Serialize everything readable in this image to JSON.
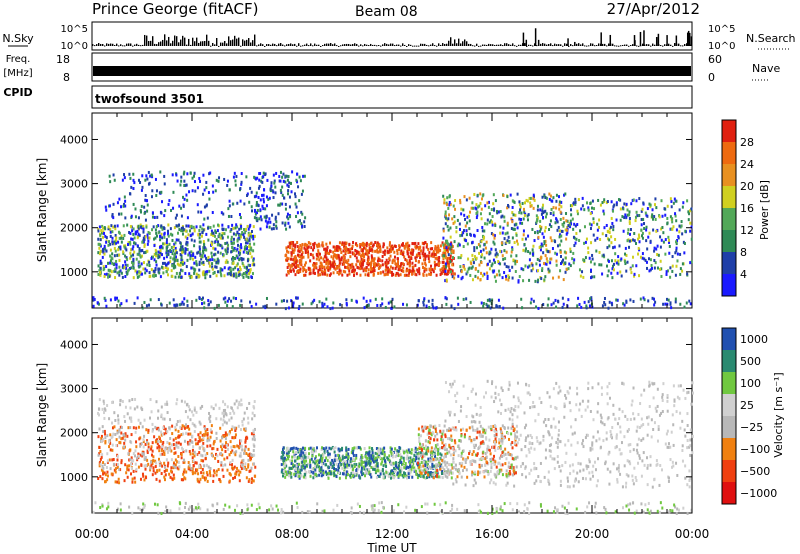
{
  "header": {
    "station": "Prince George (fitACF)",
    "beam": "Beam 08",
    "date": "27/Apr/2012"
  },
  "left_labels": {
    "nsky": "N.Sky",
    "freq": "Freq.",
    "freq_unit": "[MHz]",
    "cpid": "CPID"
  },
  "right_labels": {
    "nsearch": "N.Search",
    "nave": "Nave"
  },
  "noise_panel": {
    "left_ticks": [
      "10^5",
      "10^0"
    ],
    "right_ticks": [
      "10^5",
      "10^0"
    ]
  },
  "freq_panel": {
    "left_ticks": [
      "18",
      "8"
    ],
    "right_ticks": [
      "60",
      "0"
    ]
  },
  "cpid_panel": {
    "label": "twofsound 3501"
  },
  "time_axis": {
    "label": "Time UT",
    "ticks": [
      "00:00",
      "04:00",
      "08:00",
      "12:00",
      "16:00",
      "20:00",
      "00:00"
    ]
  },
  "colors": {
    "power_scale": [
      "#1a1aff",
      "#1f3fa8",
      "#2f8a56",
      "#52a858",
      "#d0d020",
      "#e89020",
      "#ee6a10",
      "#e02010"
    ],
    "velocity_scale": [
      "#e01010",
      "#f04010",
      "#f08010",
      "#b8b8b8",
      "#d0d0d0",
      "#70c840",
      "#2a8a70",
      "#2050b0"
    ]
  },
  "chart_data": [
    {
      "type": "heatmap",
      "ylabel": "Slant Range [km]",
      "ylim": [
        180,
        4600
      ],
      "yticks": [
        1000,
        2000,
        3000,
        4000
      ],
      "xlim_hours": [
        0,
        24
      ],
      "xtick_labels": [
        "00:00",
        "04:00",
        "08:00",
        "12:00",
        "16:00",
        "20:00",
        "00:00"
      ],
      "colorbar": {
        "label": "Power [dB]",
        "ticks": [
          "4",
          "8",
          "12",
          "16",
          "20",
          "24",
          "28"
        ]
      }
    },
    {
      "type": "heatmap",
      "ylabel": "Slant Range [km]",
      "ylim": [
        180,
        4600
      ],
      "yticks": [
        1000,
        2000,
        3000,
        4000
      ],
      "xlim_hours": [
        0,
        24
      ],
      "xtick_labels": [
        "00:00",
        "04:00",
        "08:00",
        "12:00",
        "16:00",
        "20:00",
        "00:00"
      ],
      "xlabel": "Time UT",
      "colorbar": {
        "label": "Velocity [m s⁻¹]",
        "ticks": [
          "1000",
          "500",
          "100",
          "25",
          "−25",
          "−100",
          "−500",
          "−1000"
        ]
      }
    }
  ]
}
